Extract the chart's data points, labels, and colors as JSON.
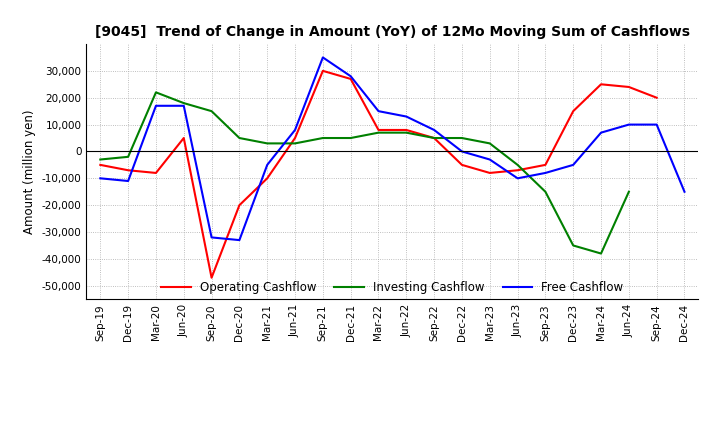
{
  "title": "[9045]  Trend of Change in Amount (YoY) of 12Mo Moving Sum of Cashflows",
  "ylabel": "Amount (million yen)",
  "x_labels": [
    "Sep-19",
    "Dec-19",
    "Mar-20",
    "Jun-20",
    "Sep-20",
    "Dec-20",
    "Mar-21",
    "Jun-21",
    "Sep-21",
    "Dec-21",
    "Mar-22",
    "Jun-22",
    "Sep-22",
    "Dec-22",
    "Mar-23",
    "Jun-23",
    "Sep-23",
    "Dec-23",
    "Mar-24",
    "Jun-24",
    "Sep-24",
    "Dec-24"
  ],
  "operating": [
    -5000,
    -7000,
    -8000,
    5000,
    -47000,
    -20000,
    -10000,
    5000,
    30000,
    27000,
    8000,
    8000,
    5000,
    -5000,
    -8000,
    -7000,
    -5000,
    15000,
    25000,
    24000,
    20000,
    null
  ],
  "investing": [
    -3000,
    -2000,
    22000,
    18000,
    15000,
    5000,
    3000,
    3000,
    5000,
    5000,
    7000,
    7000,
    5000,
    5000,
    3000,
    -5000,
    -15000,
    -35000,
    -38000,
    -15000,
    null,
    null
  ],
  "free": [
    -10000,
    -11000,
    17000,
    17000,
    -32000,
    -33000,
    -5000,
    8000,
    35000,
    28000,
    15000,
    13000,
    8000,
    0,
    -3000,
    -10000,
    -8000,
    -5000,
    7000,
    10000,
    10000,
    -15000
  ],
  "ylim": [
    -55000,
    40000
  ],
  "yticks": [
    -50000,
    -40000,
    -30000,
    -20000,
    -10000,
    0,
    10000,
    20000,
    30000
  ],
  "operating_color": "#ff0000",
  "investing_color": "#008000",
  "free_color": "#0000ff",
  "bg_color": "#ffffff",
  "grid_color": "#aaaaaa"
}
